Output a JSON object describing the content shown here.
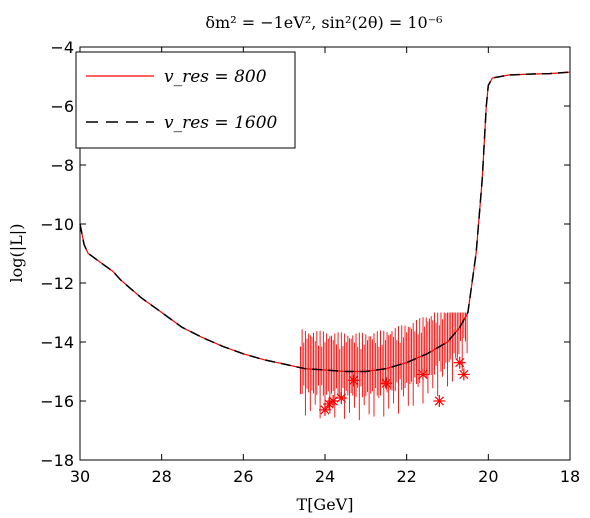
{
  "chart_data": {
    "type": "line",
    "title": "δm² = −1eV², sin²(2θ) = 10⁻⁶",
    "xlabel": "T[GeV]",
    "ylabel": "log(|L|)",
    "xlim": [
      30,
      18
    ],
    "ylim": [
      -18,
      -4
    ],
    "x_reversed": true,
    "x_ticks": [
      30,
      28,
      26,
      24,
      22,
      20,
      18
    ],
    "y_ticks": [
      -18,
      -16,
      -14,
      -12,
      -10,
      -8,
      -6,
      -4
    ],
    "grid": false,
    "legend_position": "top-left",
    "series": [
      {
        "name": "v_res = 800",
        "color": "#ff0000",
        "style": "solid",
        "x": [
          30,
          29.9,
          29.8,
          29.7,
          29.5,
          29.2,
          29.0,
          28.5,
          28.0,
          27.5,
          27.0,
          26.5,
          26.0,
          25.5,
          25.0,
          24.5,
          24.0,
          23.5,
          23.0,
          22.5,
          22.0,
          21.5,
          21.0,
          20.7,
          20.5,
          20.3,
          20.15,
          20.05,
          20.0,
          19.9,
          19.5,
          19.0,
          18.5,
          18.0
        ],
        "y": [
          -10.0,
          -10.7,
          -11.0,
          -11.1,
          -11.3,
          -11.6,
          -11.9,
          -12.5,
          -13.0,
          -13.5,
          -13.85,
          -14.15,
          -14.4,
          -14.6,
          -14.75,
          -14.9,
          -14.95,
          -15.0,
          -15.0,
          -14.9,
          -14.7,
          -14.4,
          -14.0,
          -13.5,
          -13.0,
          -11.0,
          -8.5,
          -6.0,
          -5.3,
          -5.05,
          -4.95,
          -4.92,
          -4.9,
          -4.85
        ]
      },
      {
        "name": "v_res = 1600",
        "color": "#000000",
        "style": "dashed",
        "x": [
          30,
          29.9,
          29.8,
          29.7,
          29.5,
          29.2,
          29.0,
          28.5,
          28.0,
          27.5,
          27.0,
          26.5,
          26.0,
          25.5,
          25.0,
          24.5,
          24.0,
          23.5,
          23.0,
          22.5,
          22.0,
          21.5,
          21.0,
          20.7,
          20.5,
          20.3,
          20.15,
          20.05,
          20.0,
          19.9,
          19.5,
          19.0,
          18.5,
          18.0
        ],
        "y": [
          -10.0,
          -10.7,
          -11.0,
          -11.1,
          -11.3,
          -11.6,
          -11.9,
          -12.5,
          -13.0,
          -13.5,
          -13.85,
          -14.15,
          -14.4,
          -14.6,
          -14.75,
          -14.9,
          -14.95,
          -15.0,
          -15.0,
          -14.9,
          -14.7,
          -14.4,
          -14.0,
          -13.5,
          -13.0,
          -11.0,
          -8.5,
          -6.0,
          -5.3,
          -5.05,
          -4.95,
          -4.92,
          -4.9,
          -4.85
        ]
      }
    ],
    "oscillation_spikes": {
      "series": "v_res = 800",
      "x_range": [
        24.6,
        20.5
      ],
      "x": [
        24.0,
        23.9,
        23.8,
        23.6,
        23.3,
        22.5,
        21.6,
        21.2,
        20.7,
        20.6
      ],
      "y": [
        -16.3,
        -16.1,
        -16.0,
        -15.9,
        -15.3,
        -15.4,
        -15.1,
        -16.0,
        -14.7,
        -15.1
      ],
      "marker": "asterisk"
    }
  }
}
